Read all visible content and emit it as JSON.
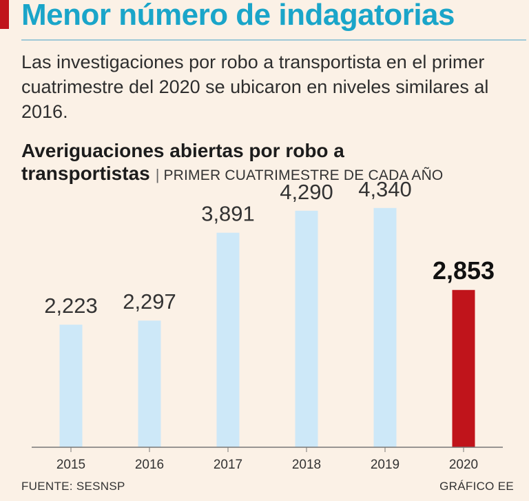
{
  "header": {
    "headline": "Menor número de indagatorias",
    "intro": "Las investigaciones por robo a transportista en el primer cuatrimestre del 2020 se ubicaron en niveles similares al 2016."
  },
  "chart_data": {
    "type": "bar",
    "title_line1": "Averiguaciones abiertas por robo a",
    "title_line2": "transportistas",
    "subtitle": "PRIMER CUATRIMESTRE DE CADA AÑO",
    "categories": [
      "2015",
      "2016",
      "2017",
      "2018",
      "2019",
      "2020"
    ],
    "values": [
      2223,
      2297,
      3891,
      4290,
      4340,
      2853
    ],
    "value_labels": [
      "2,223",
      "2,297",
      "3,891",
      "4,290",
      "4,340",
      "2,853"
    ],
    "highlight_index": 5,
    "colors": {
      "bar": "#cde8f8",
      "highlight": "#c0141b",
      "axis": "#777777"
    },
    "ylim": [
      0,
      4800
    ],
    "xlabel": "",
    "ylabel": ""
  },
  "footer": {
    "source": "FUENTE: SESNSP",
    "credit": "GRÁFICO EE"
  }
}
